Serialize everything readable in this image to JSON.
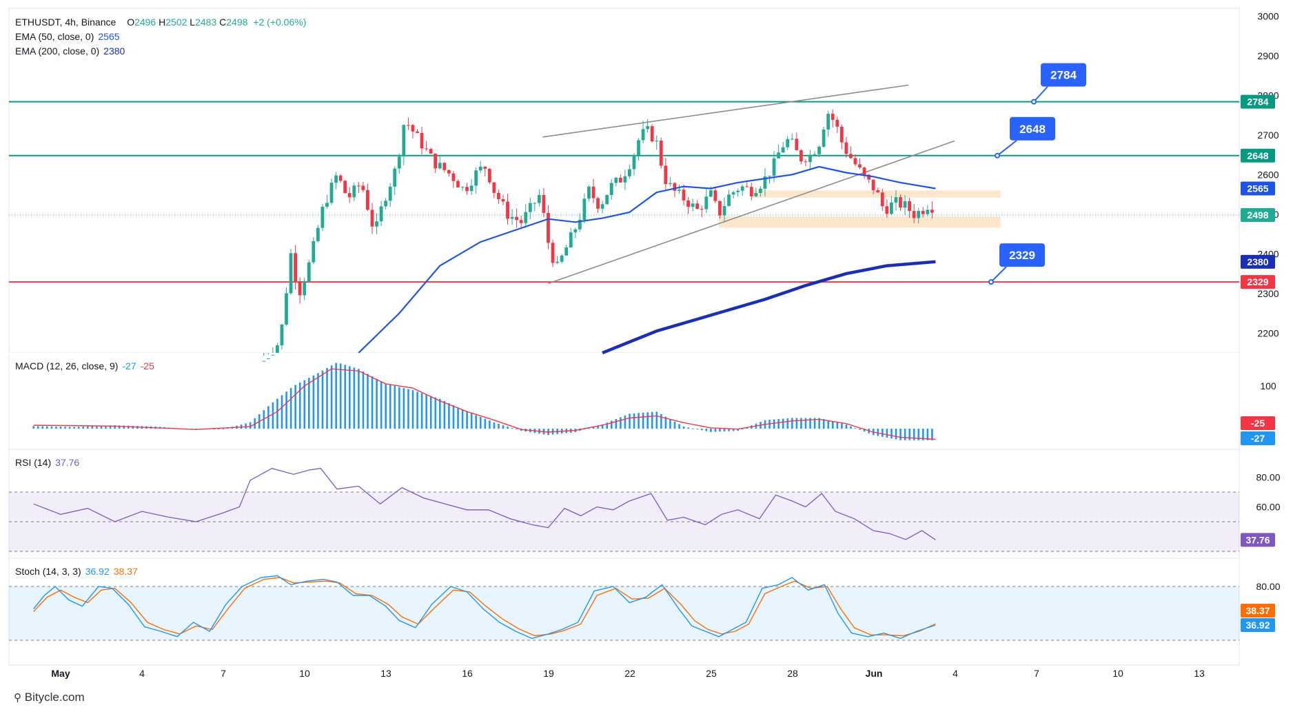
{
  "header": {
    "symbol": "ETHUSDT, 4h, Binance",
    "ohlc": [
      {
        "k": "O",
        "v": "2496"
      },
      {
        "k": "H",
        "v": "2502"
      },
      {
        "k": "L",
        "v": "2483"
      },
      {
        "k": "C",
        "v": "2498"
      }
    ],
    "change": "+2 (+0.06%)",
    "ema50": {
      "label": "EMA (50, close, 0)",
      "value": "2565"
    },
    "ema200": {
      "label": "EMA (200, close, 0)",
      "value": "2380"
    }
  },
  "colors": {
    "up": "#22ab94",
    "down": "#f23645",
    "ema50": "#1e53e5",
    "ema200": "#1a2fb3",
    "support_red": "#f23645",
    "resist_green": "#089981",
    "callout": "#2962ff",
    "macd_hist": "#2196f3",
    "macd_signal": "#f23645",
    "rsi": "#7e57c2",
    "stoch_k": "#2196f3",
    "stoch_d": "#ff6d00",
    "zone": "#fbe3c4"
  },
  "price_axis": {
    "ticks": [
      "3000",
      "2900",
      "2800",
      "2700",
      "2600",
      "2500",
      "2400",
      "2300",
      "2200"
    ]
  },
  "time_axis": {
    "labels": [
      "May",
      "4",
      "7",
      "10",
      "13",
      "16",
      "19",
      "22",
      "25",
      "28",
      "Jun",
      "4",
      "7",
      "10",
      "13"
    ]
  },
  "levels": [
    {
      "value": 2784,
      "label": "2784",
      "callout": "2784",
      "color": "#089981"
    },
    {
      "value": 2648,
      "label": "2648",
      "callout": "2648",
      "color": "#089981"
    },
    {
      "value": 2329,
      "label": "2329",
      "callout": "2329",
      "color": "#f23645"
    }
  ],
  "price_tags": [
    {
      "label": "2565",
      "value": 2565,
      "color": "#1e53e5"
    },
    {
      "label": "2498",
      "value": 2498,
      "color": "#22ab94"
    },
    {
      "label": "2380",
      "value": 2380,
      "color": "#1a2fb3"
    }
  ],
  "macd": {
    "label": "MACD (12, 26, close, 9)",
    "macd_value": "-27",
    "signal_value": "-25",
    "tick": "100"
  },
  "rsi": {
    "label": "RSI (14)",
    "value": "37.76",
    "ticks": [
      "80.00",
      "60.00"
    ]
  },
  "stoch": {
    "label": "Stoch (14, 3, 3)",
    "k_value": "36.92",
    "d_value": "38.37",
    "tick": "80.00"
  },
  "footer": {
    "brand": "Bitycle.com"
  },
  "chart_data": {
    "type": "candlestick",
    "title": "ETHUSDT, 4h, Binance",
    "ylim": [
      2150,
      3020
    ],
    "x_range": [
      "Apr 30",
      "Jun 14"
    ],
    "price_path": [
      [
        8.5,
        2130
      ],
      [
        9.1,
        2180
      ],
      [
        9.5,
        2400
      ],
      [
        9.8,
        2300
      ],
      [
        10.2,
        2380
      ],
      [
        10.7,
        2520
      ],
      [
        11.2,
        2600
      ],
      [
        11.6,
        2540
      ],
      [
        12.1,
        2580
      ],
      [
        12.6,
        2450
      ],
      [
        12.9,
        2530
      ],
      [
        13.4,
        2620
      ],
      [
        13.7,
        2740
      ],
      [
        14.2,
        2690
      ],
      [
        14.8,
        2630
      ],
      [
        15.4,
        2600
      ],
      [
        15.9,
        2560
      ],
      [
        16.4,
        2610
      ],
      [
        16.7,
        2620
      ],
      [
        17.0,
        2560
      ],
      [
        17.5,
        2500
      ],
      [
        18.0,
        2480
      ],
      [
        18.4,
        2520
      ],
      [
        18.7,
        2550
      ],
      [
        19.0,
        2430
      ],
      [
        19.3,
        2360
      ],
      [
        19.7,
        2420
      ],
      [
        20.1,
        2480
      ],
      [
        20.5,
        2560
      ],
      [
        20.9,
        2520
      ],
      [
        21.3,
        2570
      ],
      [
        21.7,
        2590
      ],
      [
        22.1,
        2640
      ],
      [
        22.4,
        2700
      ],
      [
        22.7,
        2710
      ],
      [
        23.0,
        2680
      ],
      [
        23.3,
        2590
      ],
      [
        23.6,
        2560
      ],
      [
        24.0,
        2540
      ],
      [
        24.5,
        2510
      ],
      [
        25.0,
        2550
      ],
      [
        25.3,
        2500
      ],
      [
        25.7,
        2550
      ],
      [
        26.1,
        2570
      ],
      [
        26.5,
        2560
      ],
      [
        26.9,
        2580
      ],
      [
        27.3,
        2620
      ],
      [
        27.6,
        2670
      ],
      [
        27.9,
        2690
      ],
      [
        28.3,
        2640
      ],
      [
        28.7,
        2650
      ],
      [
        29.0,
        2680
      ],
      [
        29.3,
        2760
      ],
      [
        29.6,
        2730
      ],
      [
        29.9,
        2670
      ],
      [
        30.3,
        2630
      ],
      [
        30.7,
        2590
      ],
      [
        31.1,
        2560
      ],
      [
        31.4,
        2510
      ],
      [
        31.8,
        2530
      ],
      [
        32.2,
        2520
      ],
      [
        32.5,
        2500
      ],
      [
        32.8,
        2510
      ],
      [
        33.1,
        2530
      ],
      [
        33.3,
        2498
      ]
    ],
    "ema50": [
      [
        12.0,
        2150
      ],
      [
        13.5,
        2250
      ],
      [
        15.0,
        2370
      ],
      [
        16.5,
        2430
      ],
      [
        18.0,
        2465
      ],
      [
        19.0,
        2488
      ],
      [
        20.0,
        2480
      ],
      [
        21.0,
        2490
      ],
      [
        22.0,
        2505
      ],
      [
        23.0,
        2555
      ],
      [
        24.0,
        2570
      ],
      [
        25.0,
        2565
      ],
      [
        26.0,
        2580
      ],
      [
        27.0,
        2590
      ],
      [
        28.0,
        2600
      ],
      [
        29.0,
        2620
      ],
      [
        30.0,
        2605
      ],
      [
        31.0,
        2595
      ],
      [
        32.0,
        2580
      ],
      [
        33.3,
        2565
      ]
    ],
    "ema200": [
      [
        21.0,
        2150
      ],
      [
        23.0,
        2205
      ],
      [
        25.0,
        2245
      ],
      [
        27.0,
        2285
      ],
      [
        28.5,
        2320
      ],
      [
        30.0,
        2350
      ],
      [
        31.5,
        2370
      ],
      [
        33.3,
        2380
      ]
    ],
    "channel_upper": [
      [
        18.8,
        2695
      ],
      [
        32.3,
        2826
      ]
    ],
    "channel_lower": [
      [
        19.0,
        2325
      ],
      [
        34.0,
        2685
      ]
    ],
    "zones": [
      {
        "x": [
          26.5,
          35.7
        ],
        "y": [
          2542,
          2560
        ]
      },
      {
        "x": [
          25.3,
          35.7
        ],
        "y": [
          2466,
          2495
        ]
      }
    ],
    "macd_hist": [
      [
        0,
        6
      ],
      [
        1.5,
        4
      ],
      [
        3,
        8
      ],
      [
        4.5,
        5
      ],
      [
        6,
        -2
      ],
      [
        7,
        -1
      ],
      [
        8,
        15
      ],
      [
        8.8,
        60
      ],
      [
        9.6,
        100
      ],
      [
        10.5,
        130
      ],
      [
        11.2,
        155
      ],
      [
        12,
        140
      ],
      [
        13,
        105
      ],
      [
        14,
        90
      ],
      [
        15,
        70
      ],
      [
        16,
        40
      ],
      [
        17,
        15
      ],
      [
        18,
        -5
      ],
      [
        19,
        -15
      ],
      [
        20,
        -8
      ],
      [
        21,
        10
      ],
      [
        22,
        35
      ],
      [
        23,
        40
      ],
      [
        24,
        5
      ],
      [
        25,
        -8
      ],
      [
        26,
        -5
      ],
      [
        27,
        20
      ],
      [
        28,
        25
      ],
      [
        29,
        25
      ],
      [
        30,
        10
      ],
      [
        31,
        -15
      ],
      [
        32,
        -27
      ],
      [
        33.3,
        -27
      ]
    ],
    "macd_signal": [
      [
        0,
        8
      ],
      [
        3,
        6
      ],
      [
        6,
        -2
      ],
      [
        8,
        5
      ],
      [
        9,
        40
      ],
      [
        10,
        100
      ],
      [
        11,
        140
      ],
      [
        12,
        135
      ],
      [
        13,
        105
      ],
      [
        14,
        95
      ],
      [
        15,
        65
      ],
      [
        16,
        40
      ],
      [
        17,
        20
      ],
      [
        18,
        -2
      ],
      [
        19,
        -8
      ],
      [
        20,
        -4
      ],
      [
        21,
        8
      ],
      [
        22,
        25
      ],
      [
        23,
        30
      ],
      [
        24,
        14
      ],
      [
        25,
        2
      ],
      [
        26,
        -1
      ],
      [
        27,
        10
      ],
      [
        28,
        18
      ],
      [
        29,
        22
      ],
      [
        30,
        12
      ],
      [
        31,
        -8
      ],
      [
        32,
        -20
      ],
      [
        33.3,
        -25
      ]
    ],
    "rsi": [
      [
        0,
        62
      ],
      [
        1,
        55
      ],
      [
        2,
        59
      ],
      [
        3,
        50
      ],
      [
        4,
        57
      ],
      [
        5,
        53
      ],
      [
        6,
        50
      ],
      [
        7,
        56
      ],
      [
        7.6,
        60
      ],
      [
        8,
        78
      ],
      [
        8.8,
        86
      ],
      [
        9.6,
        82
      ],
      [
        10.2,
        85
      ],
      [
        10.6,
        86
      ],
      [
        11.2,
        72
      ],
      [
        12,
        74
      ],
      [
        12.8,
        62
      ],
      [
        13.6,
        73
      ],
      [
        14.4,
        66
      ],
      [
        15.2,
        62
      ],
      [
        16,
        58
      ],
      [
        16.8,
        58
      ],
      [
        17.6,
        52
      ],
      [
        18.4,
        48
      ],
      [
        19,
        46
      ],
      [
        19.6,
        59
      ],
      [
        20.2,
        54
      ],
      [
        20.8,
        60
      ],
      [
        21.4,
        58
      ],
      [
        22,
        64
      ],
      [
        22.8,
        69
      ],
      [
        23.4,
        51
      ],
      [
        24,
        53
      ],
      [
        24.8,
        48
      ],
      [
        25.4,
        55
      ],
      [
        26,
        58
      ],
      [
        26.8,
        52
      ],
      [
        27.4,
        68
      ],
      [
        28,
        64
      ],
      [
        28.5,
        60
      ],
      [
        29.1,
        69
      ],
      [
        29.6,
        57
      ],
      [
        30.3,
        52
      ],
      [
        31,
        44
      ],
      [
        31.6,
        42
      ],
      [
        32.2,
        38
      ],
      [
        32.8,
        44
      ],
      [
        33.3,
        37.76
      ]
    ],
    "stoch_k": [
      [
        0,
        55
      ],
      [
        0.4,
        70
      ],
      [
        0.8,
        80
      ],
      [
        1.3,
        65
      ],
      [
        1.8,
        58
      ],
      [
        2.4,
        80
      ],
      [
        2.9,
        78
      ],
      [
        3.5,
        60
      ],
      [
        4.1,
        35
      ],
      [
        4.7,
        30
      ],
      [
        5.3,
        24
      ],
      [
        5.9,
        40
      ],
      [
        6.5,
        30
      ],
      [
        7.1,
        60
      ],
      [
        7.7,
        80
      ],
      [
        8.4,
        90
      ],
      [
        9,
        92
      ],
      [
        9.5,
        82
      ],
      [
        10.1,
        86
      ],
      [
        10.7,
        88
      ],
      [
        11.2,
        85
      ],
      [
        11.8,
        70
      ],
      [
        12.4,
        70
      ],
      [
        13,
        58
      ],
      [
        13.5,
        42
      ],
      [
        14.1,
        34
      ],
      [
        14.7,
        60
      ],
      [
        15.4,
        80
      ],
      [
        16,
        74
      ],
      [
        16.6,
        55
      ],
      [
        17.2,
        40
      ],
      [
        17.8,
        30
      ],
      [
        18.4,
        22
      ],
      [
        19,
        27
      ],
      [
        19.5,
        32
      ],
      [
        20.1,
        40
      ],
      [
        20.7,
        75
      ],
      [
        21.4,
        80
      ],
      [
        22,
        62
      ],
      [
        22.6,
        68
      ],
      [
        23.2,
        82
      ],
      [
        23.8,
        56
      ],
      [
        24.3,
        36
      ],
      [
        24.8,
        30
      ],
      [
        25.3,
        24
      ],
      [
        25.8,
        32
      ],
      [
        26.3,
        40
      ],
      [
        26.9,
        78
      ],
      [
        27.5,
        82
      ],
      [
        28,
        90
      ],
      [
        28.6,
        76
      ],
      [
        29.2,
        82
      ],
      [
        29.7,
        50
      ],
      [
        30.2,
        28
      ],
      [
        30.8,
        24
      ],
      [
        31.4,
        28
      ],
      [
        32,
        22
      ],
      [
        32.6,
        30
      ],
      [
        33.3,
        36.92
      ]
    ],
    "stoch_d": [
      [
        0,
        52
      ],
      [
        0.5,
        68
      ],
      [
        1,
        76
      ],
      [
        1.5,
        68
      ],
      [
        2,
        62
      ],
      [
        2.5,
        76
      ],
      [
        3,
        78
      ],
      [
        3.6,
        62
      ],
      [
        4.2,
        40
      ],
      [
        4.8,
        32
      ],
      [
        5.4,
        27
      ],
      [
        6,
        36
      ],
      [
        6.6,
        32
      ],
      [
        7.2,
        56
      ],
      [
        7.8,
        78
      ],
      [
        8.5,
        88
      ],
      [
        9.1,
        90
      ],
      [
        9.6,
        84
      ],
      [
        10.2,
        85
      ],
      [
        10.8,
        86
      ],
      [
        11.3,
        84
      ],
      [
        11.9,
        72
      ],
      [
        12.5,
        70
      ],
      [
        13.1,
        60
      ],
      [
        13.6,
        46
      ],
      [
        14.2,
        38
      ],
      [
        14.8,
        56
      ],
      [
        15.5,
        76
      ],
      [
        16.1,
        74
      ],
      [
        16.7,
        58
      ],
      [
        17.3,
        44
      ],
      [
        17.9,
        33
      ],
      [
        18.5,
        25
      ],
      [
        19.1,
        27
      ],
      [
        19.6,
        31
      ],
      [
        20.2,
        38
      ],
      [
        20.8,
        70
      ],
      [
        21.5,
        78
      ],
      [
        22.1,
        66
      ],
      [
        22.7,
        67
      ],
      [
        23.3,
        78
      ],
      [
        23.9,
        60
      ],
      [
        24.4,
        42
      ],
      [
        24.9,
        32
      ],
      [
        25.4,
        27
      ],
      [
        25.9,
        30
      ],
      [
        26.4,
        38
      ],
      [
        27,
        72
      ],
      [
        27.6,
        80
      ],
      [
        28.1,
        86
      ],
      [
        28.7,
        78
      ],
      [
        29.3,
        80
      ],
      [
        29.8,
        55
      ],
      [
        30.3,
        34
      ],
      [
        30.9,
        26
      ],
      [
        31.5,
        26
      ],
      [
        32.1,
        25
      ],
      [
        32.7,
        30
      ],
      [
        33.3,
        38.37
      ]
    ]
  }
}
